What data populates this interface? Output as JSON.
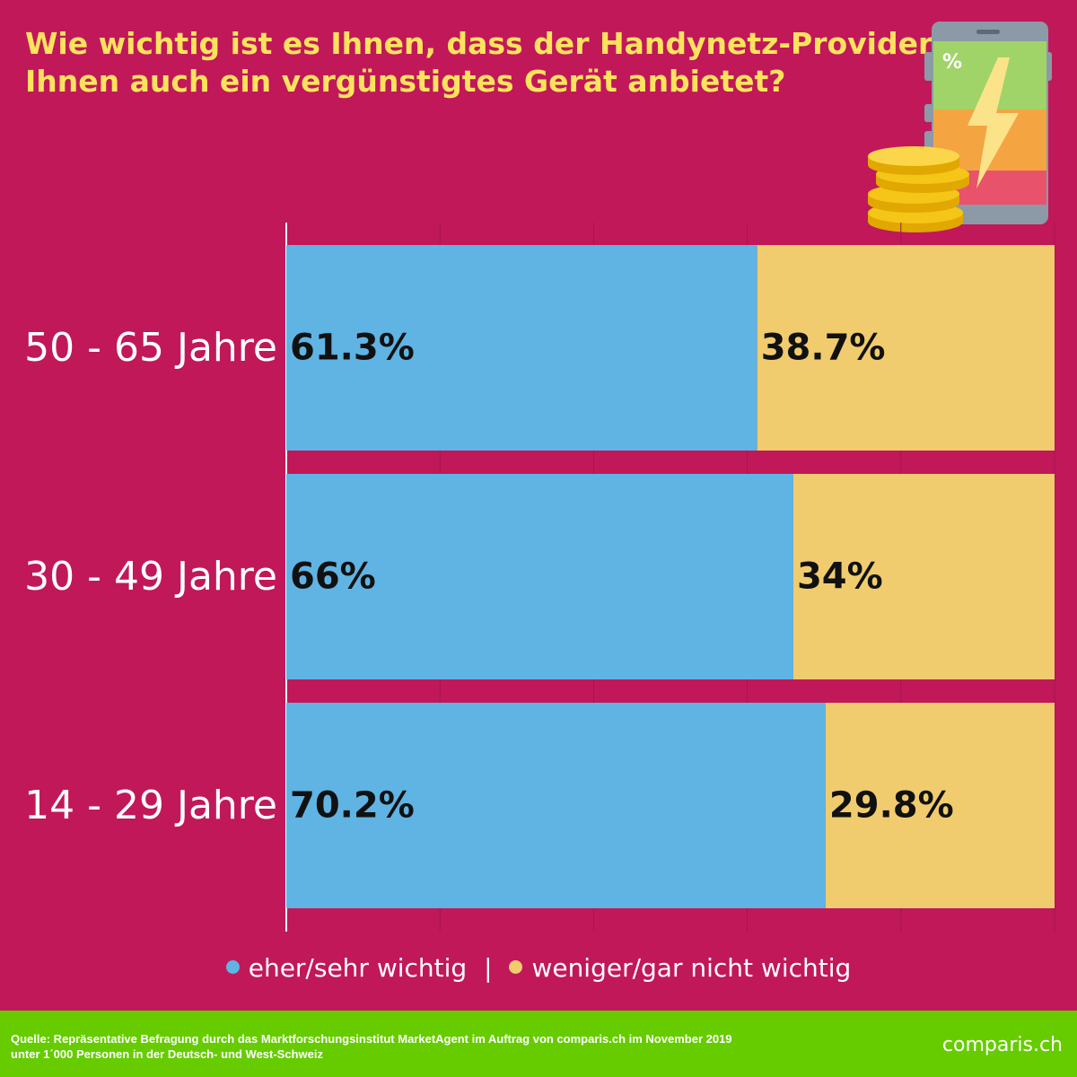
{
  "title_lines": [
    "Wie wichtig ist es Ihnen, dass der Handynetz-Provider",
    "Ihnen auch ein vergünstigtes Gerät anbietet?"
  ],
  "chart_data": {
    "type": "bar",
    "orientation": "horizontal",
    "stacked": true,
    "categories": [
      "50 - 65 Jahre",
      "30 - 49 Jahre",
      "14 - 29 Jahre"
    ],
    "series": [
      {
        "name": "eher/sehr wichtig",
        "values": [
          61.3,
          66,
          70.2
        ],
        "labels": [
          "61.3%",
          "66%",
          "70.2%"
        ],
        "color": "#5fb4e3"
      },
      {
        "name": "weniger/gar nicht wichtig",
        "values": [
          38.7,
          34,
          29.8
        ],
        "labels": [
          "38.7%",
          "34%",
          "29.8%"
        ],
        "color": "#f0cc6e"
      }
    ],
    "xlim": [
      0,
      100
    ],
    "grid": true,
    "legend_position": "bottom"
  },
  "legend": {
    "items": [
      "eher/sehr wichtig",
      "weniger/gar nicht wichtig"
    ],
    "separator": "|"
  },
  "footer": {
    "source_lines": [
      "Quelle: Repräsentative Befragung durch das Marktforschungsinstitut MarketAgent im Auftrag von comparis.ch im November 2019",
      "unter 1´000 Personen in der Deutsch- und West-Schweiz"
    ],
    "logo": "comparis.ch",
    "background": "#66cc00"
  },
  "colors": {
    "background": "#c1185a",
    "title": "#fde35d",
    "label_text": "#ffffff"
  }
}
